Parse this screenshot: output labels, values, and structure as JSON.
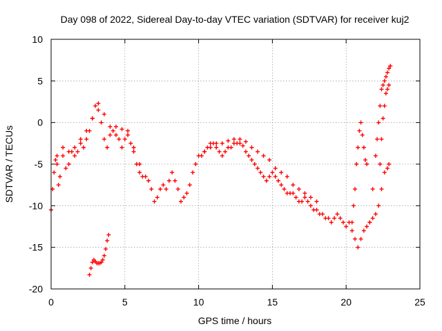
{
  "chart_data": {
    "type": "scatter",
    "title": "Day 098 of 2022, Sidereal Day-to-day VTEC variation (SDTVAR) for receiver kuj2",
    "xlabel": "GPS time / hours",
    "ylabel": "SDTVAR / TECUs",
    "xlim": [
      0,
      25
    ],
    "ylim": [
      -20,
      10
    ],
    "xticks": [
      0,
      5,
      10,
      15,
      20,
      25
    ],
    "yticks": [
      -20,
      -15,
      -10,
      -5,
      0,
      5,
      10
    ],
    "xtick_labels": [
      "0",
      "5",
      "10",
      "15",
      "20",
      "25"
    ],
    "ytick_labels": [
      "-20",
      "-15",
      "-10",
      "-5",
      "0",
      "5",
      "10"
    ],
    "grid": true,
    "marker": "+",
    "color": "#ff0000",
    "series": [
      {
        "name": "main",
        "x": [
          0.0,
          0.1,
          0.2,
          0.3,
          0.4,
          0.5,
          0.6,
          0.8,
          1.0,
          1.2,
          1.4,
          1.6,
          1.8,
          2.0,
          2.2,
          2.4,
          2.6,
          2.8,
          3.0,
          3.2,
          3.4,
          3.6,
          3.8,
          4.0,
          4.2,
          4.4,
          4.6,
          4.8,
          5.0,
          5.2,
          5.4,
          5.6,
          5.8,
          6.0,
          6.2,
          6.4,
          6.6,
          6.8,
          7.0,
          7.2,
          7.4,
          7.6,
          7.8,
          8.0,
          8.2,
          8.4,
          8.6,
          8.8,
          9.0,
          9.2,
          9.4,
          9.6,
          9.8,
          10.0,
          10.2,
          10.4,
          10.6,
          10.8,
          11.0,
          11.2,
          11.4,
          11.6,
          11.8,
          12.0,
          12.2,
          12.4,
          12.6,
          12.8,
          13.0,
          13.2,
          13.4,
          13.6,
          13.8,
          14.0,
          14.2,
          14.4,
          14.6,
          14.8,
          15.0,
          15.2,
          15.4,
          15.6,
          15.8,
          16.0,
          16.2,
          16.4,
          16.6,
          16.8,
          17.0,
          17.2,
          17.4,
          17.6,
          17.8,
          18.0,
          18.2,
          18.4,
          18.6,
          18.8,
          19.0,
          19.2,
          19.4,
          19.6,
          19.8,
          20.0,
          20.2,
          20.4,
          20.6,
          20.8,
          21.0,
          21.2,
          21.4,
          21.6,
          21.8,
          22.0,
          22.2,
          22.4,
          22.6,
          22.8,
          22.9
        ],
        "y": [
          -10.5,
          -8.0,
          -6.0,
          -4.5,
          -5.0,
          -7.5,
          -6.5,
          -4.0,
          -5.5,
          -5.0,
          -3.5,
          -4.0,
          -3.5,
          -2.5,
          -3.0,
          -2.0,
          -1.0,
          0.5,
          2.0,
          1.5,
          0.0,
          -2.0,
          -3.0,
          -1.5,
          -1.0,
          -1.5,
          -2.0,
          -3.0,
          -2.0,
          -1.0,
          -2.5,
          -3.5,
          -5.0,
          -6.0,
          -6.5,
          -6.5,
          -7.0,
          -8.0,
          -9.5,
          -9.0,
          -8.0,
          -7.5,
          -8.0,
          -7.0,
          -6.0,
          -7.0,
          -8.0,
          -9.5,
          -9.0,
          -8.5,
          -7.5,
          -6.0,
          -5.0,
          -4.0,
          -4.0,
          -3.5,
          -3.0,
          -2.5,
          -2.5,
          -3.0,
          -3.5,
          -4.0,
          -3.5,
          -3.0,
          -3.0,
          -2.5,
          -2.5,
          -2.5,
          -2.8,
          -3.5,
          -4.0,
          -4.5,
          -5.0,
          -5.5,
          -6.0,
          -6.5,
          -7.0,
          -6.5,
          -6.0,
          -6.5,
          -7.0,
          -7.5,
          -8.0,
          -8.5,
          -8.5,
          -8.5,
          -9.0,
          -9.5,
          -9.5,
          -9.0,
          -9.5,
          -10.0,
          -10.5,
          -10.5,
          -11.0,
          -11.0,
          -11.5,
          -11.5,
          -12.0,
          -11.5,
          -11.0,
          -11.5,
          -12.0,
          -12.5,
          -12.0,
          -13.0,
          -14.0,
          -15.0,
          -14.0,
          -13.0,
          -12.5,
          -12.0,
          -11.5,
          -11.0,
          -10.0,
          -8.0,
          -6.0,
          -5.5,
          -5.0
        ]
      },
      {
        "name": "upper-band",
        "x": [
          0.4,
          0.8,
          1.2,
          1.6,
          2.0,
          2.4,
          2.8,
          3.2,
          3.6,
          4.0,
          4.4,
          4.8,
          5.2,
          5.6,
          6.0,
          10.4,
          10.8,
          11.2,
          11.6,
          12.0,
          12.4,
          12.8,
          13.2,
          13.6,
          14.0,
          14.4,
          14.8,
          15.2,
          15.6,
          16.0,
          16.4,
          16.8,
          17.2,
          17.6,
          18.0
        ],
        "y": [
          -4.0,
          -3.0,
          -3.5,
          -3.0,
          -2.0,
          -1.0,
          0.5,
          2.3,
          1.0,
          -0.5,
          -0.5,
          -0.8,
          -1.5,
          -3.0,
          -5.0,
          -3.5,
          -3.0,
          -2.5,
          -2.5,
          -2.2,
          -2.0,
          -2.0,
          -2.3,
          -3.0,
          -3.5,
          -4.0,
          -4.5,
          -5.5,
          -6.0,
          -6.5,
          -7.5,
          -8.0,
          -8.5,
          -9.0,
          -9.5
        ]
      },
      {
        "name": "late-spike-left",
        "x": [
          20.4,
          20.5,
          20.6,
          20.7,
          20.8,
          20.9,
          21.0,
          21.1,
          21.2,
          21.3,
          21.4
        ],
        "y": [
          -12.0,
          -10.0,
          -8.0,
          -5.0,
          -3.0,
          -1.0,
          0.0,
          -1.5,
          -3.0,
          -4.5,
          -5.0
        ]
      },
      {
        "name": "late-spike-right",
        "x": [
          21.6,
          21.8,
          22.0,
          22.1,
          22.2,
          22.3,
          22.4,
          22.5,
          22.6,
          22.7,
          22.8,
          22.9,
          23.0,
          22.9,
          22.8,
          22.7,
          22.6,
          22.5,
          22.4,
          22.3
        ],
        "y": [
          -12.0,
          -8.0,
          -4.0,
          -2.0,
          0.0,
          2.0,
          4.0,
          4.5,
          5.0,
          5.5,
          6.0,
          6.5,
          6.8,
          4.5,
          4.0,
          3.5,
          2.0,
          0.5,
          -2.0,
          -5.0
        ]
      },
      {
        "name": "isolated-low",
        "x": [
          2.6,
          2.7,
          2.8,
          2.9,
          3.0,
          3.1,
          3.2,
          3.3,
          3.4,
          3.5,
          3.6,
          3.7,
          3.8,
          3.9
        ],
        "y": [
          -18.3,
          -17.5,
          -16.8,
          -16.5,
          -16.7,
          -16.9,
          -16.9,
          -16.9,
          -16.8,
          -16.5,
          -16.0,
          -15.2,
          -14.2,
          -13.5
        ]
      }
    ]
  }
}
